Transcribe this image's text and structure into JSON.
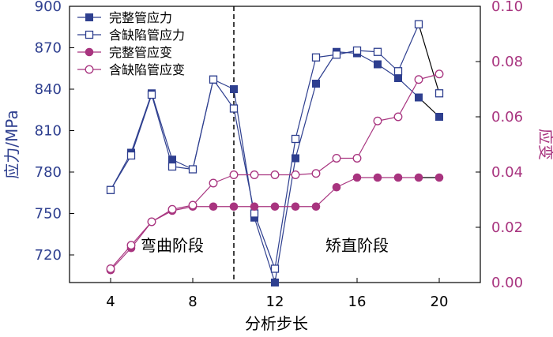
{
  "chart_data": {
    "type": "line",
    "xlabel": "分析步长",
    "ylabel_left": "应力/MPa",
    "ylabel_right": "应变",
    "xlim": [
      2,
      22
    ],
    "xticks": [
      4,
      8,
      12,
      16,
      20
    ],
    "ylim_left": [
      700,
      900
    ],
    "yticks_left": [
      720,
      750,
      780,
      810,
      840,
      870,
      900
    ],
    "ylim_right": [
      0.0,
      0.1
    ],
    "yticks_right": [
      "0.00",
      "0.02",
      "0.04",
      "0.06",
      "0.08",
      "0.10"
    ],
    "grid": false,
    "legend_position": "top-left",
    "annotations": [
      {
        "text": "弯曲阶段",
        "x": 7,
        "y_left": 723
      },
      {
        "text": "矫直阶段",
        "x": 16,
        "y_left": 723
      }
    ],
    "divider_x": 10,
    "series": [
      {
        "name": "完整管应力",
        "axis": "left",
        "marker": "filled-square",
        "color": "#2e3f8f",
        "x": [
          4,
          5,
          6,
          7,
          8,
          9,
          10,
          11,
          12,
          13,
          14,
          15,
          16,
          17,
          18,
          19,
          20
        ],
        "y": [
          767,
          794,
          837,
          789,
          782,
          847,
          840,
          747,
          700,
          790,
          844,
          867,
          866,
          858,
          848,
          834,
          820
        ]
      },
      {
        "name": "含缺陷管应力",
        "axis": "left",
        "marker": "open-square",
        "color": "#2e3f8f",
        "x": [
          4,
          5,
          6,
          7,
          8,
          9,
          10,
          11,
          12,
          13,
          14,
          15,
          16,
          17,
          18,
          19,
          20
        ],
        "y": [
          767,
          792,
          836,
          784,
          782,
          847,
          826,
          750,
          710,
          804,
          863,
          865,
          868,
          867,
          853,
          887,
          837
        ]
      },
      {
        "name": "完整管应变",
        "axis": "right",
        "marker": "filled-circle",
        "color": "#a8347f",
        "x": [
          4,
          5,
          6,
          7,
          8,
          9,
          10,
          11,
          12,
          13,
          14,
          15,
          16,
          17,
          18,
          19,
          20
        ],
        "y": [
          0.0045,
          0.0125,
          0.022,
          0.026,
          0.0275,
          0.0275,
          0.0275,
          0.0275,
          0.0275,
          0.0275,
          0.0275,
          0.0345,
          0.038,
          0.038,
          0.038,
          0.038,
          0.038
        ]
      },
      {
        "name": "含缺陷管应变",
        "axis": "right",
        "marker": "open-circle",
        "color": "#a8347f",
        "x": [
          4,
          5,
          6,
          7,
          8,
          9,
          10,
          11,
          12,
          13,
          14,
          15,
          16,
          17,
          18,
          19,
          20
        ],
        "y": [
          0.005,
          0.0135,
          0.022,
          0.0265,
          0.028,
          0.036,
          0.039,
          0.039,
          0.039,
          0.039,
          0.0395,
          0.045,
          0.045,
          0.0585,
          0.06,
          0.0735,
          0.0755
        ]
      }
    ]
  }
}
